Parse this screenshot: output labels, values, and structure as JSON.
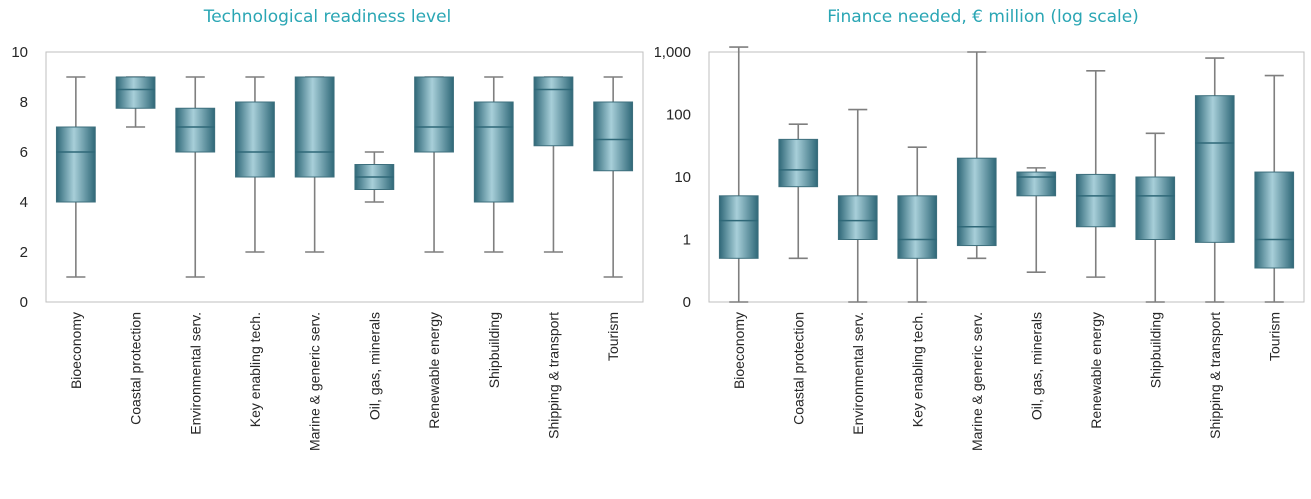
{
  "colors": {
    "title": "#2aa6b4",
    "box_light": "#a8cfd9",
    "box_mid": "#6fa6b5",
    "box_dark": "#2f6878",
    "box_edge": "#3d6f7d",
    "whisker": "#7f7f7f",
    "frame": "#bfbfbf"
  },
  "chart_data": [
    {
      "type": "box",
      "title": "Technological readiness level",
      "y_scale": "linear",
      "ylim": [
        0,
        10
      ],
      "yticks": [
        0,
        2,
        4,
        6,
        8,
        10
      ],
      "ytick_labels": [
        "0",
        "2",
        "4",
        "6",
        "8",
        "10"
      ],
      "grid": false,
      "categories": [
        "Bioeconomy",
        "Coastal protection",
        "Environmental serv.",
        "Key enabling tech.",
        "Marine & generic serv.",
        "Oil, gas, minerals",
        "Renewable energy",
        "Shipbuilding",
        "Shipping & transport",
        "Tourism"
      ],
      "boxes": [
        {
          "min": 1,
          "q1": 4,
          "median": 6,
          "q3": 7,
          "max": 9
        },
        {
          "min": 7,
          "q1": 7.75,
          "median": 8.5,
          "q3": 9,
          "max": 9
        },
        {
          "min": 1,
          "q1": 6,
          "median": 7,
          "q3": 7.75,
          "max": 9
        },
        {
          "min": 2,
          "q1": 5,
          "median": 6,
          "q3": 8,
          "max": 9
        },
        {
          "min": 2,
          "q1": 5,
          "median": 6,
          "q3": 9,
          "max": 9
        },
        {
          "min": 4,
          "q1": 4.5,
          "median": 5,
          "q3": 5.5,
          "max": 6
        },
        {
          "min": 2,
          "q1": 6,
          "median": 7,
          "q3": 9,
          "max": 9
        },
        {
          "min": 2,
          "q1": 4,
          "median": 7,
          "q3": 8,
          "max": 9
        },
        {
          "min": 2,
          "q1": 6.25,
          "median": 8.5,
          "q3": 9,
          "max": 9
        },
        {
          "min": 1,
          "q1": 5.25,
          "median": 6.5,
          "q3": 8,
          "max": 9
        }
      ]
    },
    {
      "type": "box",
      "title": "Finance needed, € million (log scale)",
      "y_scale": "log",
      "ylim": [
        0.1,
        1000
      ],
      "yticks": [
        0.1,
        1,
        10,
        100,
        1000
      ],
      "ytick_labels": [
        "0",
        "1",
        "10",
        "100",
        "1,000"
      ],
      "grid": false,
      "categories": [
        "Bioeconomy",
        "Coastal protection",
        "Environmental serv.",
        "Key enabling tech.",
        "Marine & generic serv.",
        "Oil, gas, minerals",
        "Renewable energy",
        "Shipbuilding",
        "Shipping & transport",
        "Tourism"
      ],
      "boxes": [
        {
          "min": 0.1,
          "q1": 0.5,
          "median": 2,
          "q3": 5,
          "max": 1200
        },
        {
          "min": 0.5,
          "q1": 7,
          "median": 13,
          "q3": 40,
          "max": 70
        },
        {
          "min": 0.1,
          "q1": 1,
          "median": 2,
          "q3": 5,
          "max": 120
        },
        {
          "min": 0.1,
          "q1": 0.5,
          "median": 1,
          "q3": 5,
          "max": 30
        },
        {
          "min": 0.5,
          "q1": 0.8,
          "median": 1.6,
          "q3": 20,
          "max": 1000
        },
        {
          "min": 0.3,
          "q1": 5,
          "median": 10,
          "q3": 12,
          "max": 14
        },
        {
          "min": 0.25,
          "q1": 1.6,
          "median": 5,
          "q3": 11,
          "max": 500
        },
        {
          "min": 0.1,
          "q1": 1,
          "median": 5,
          "q3": 10,
          "max": 50
        },
        {
          "min": 0.1,
          "q1": 0.9,
          "median": 35,
          "q3": 200,
          "max": 800
        },
        {
          "min": 0.1,
          "q1": 0.35,
          "median": 1,
          "q3": 12,
          "max": 420
        }
      ]
    }
  ]
}
